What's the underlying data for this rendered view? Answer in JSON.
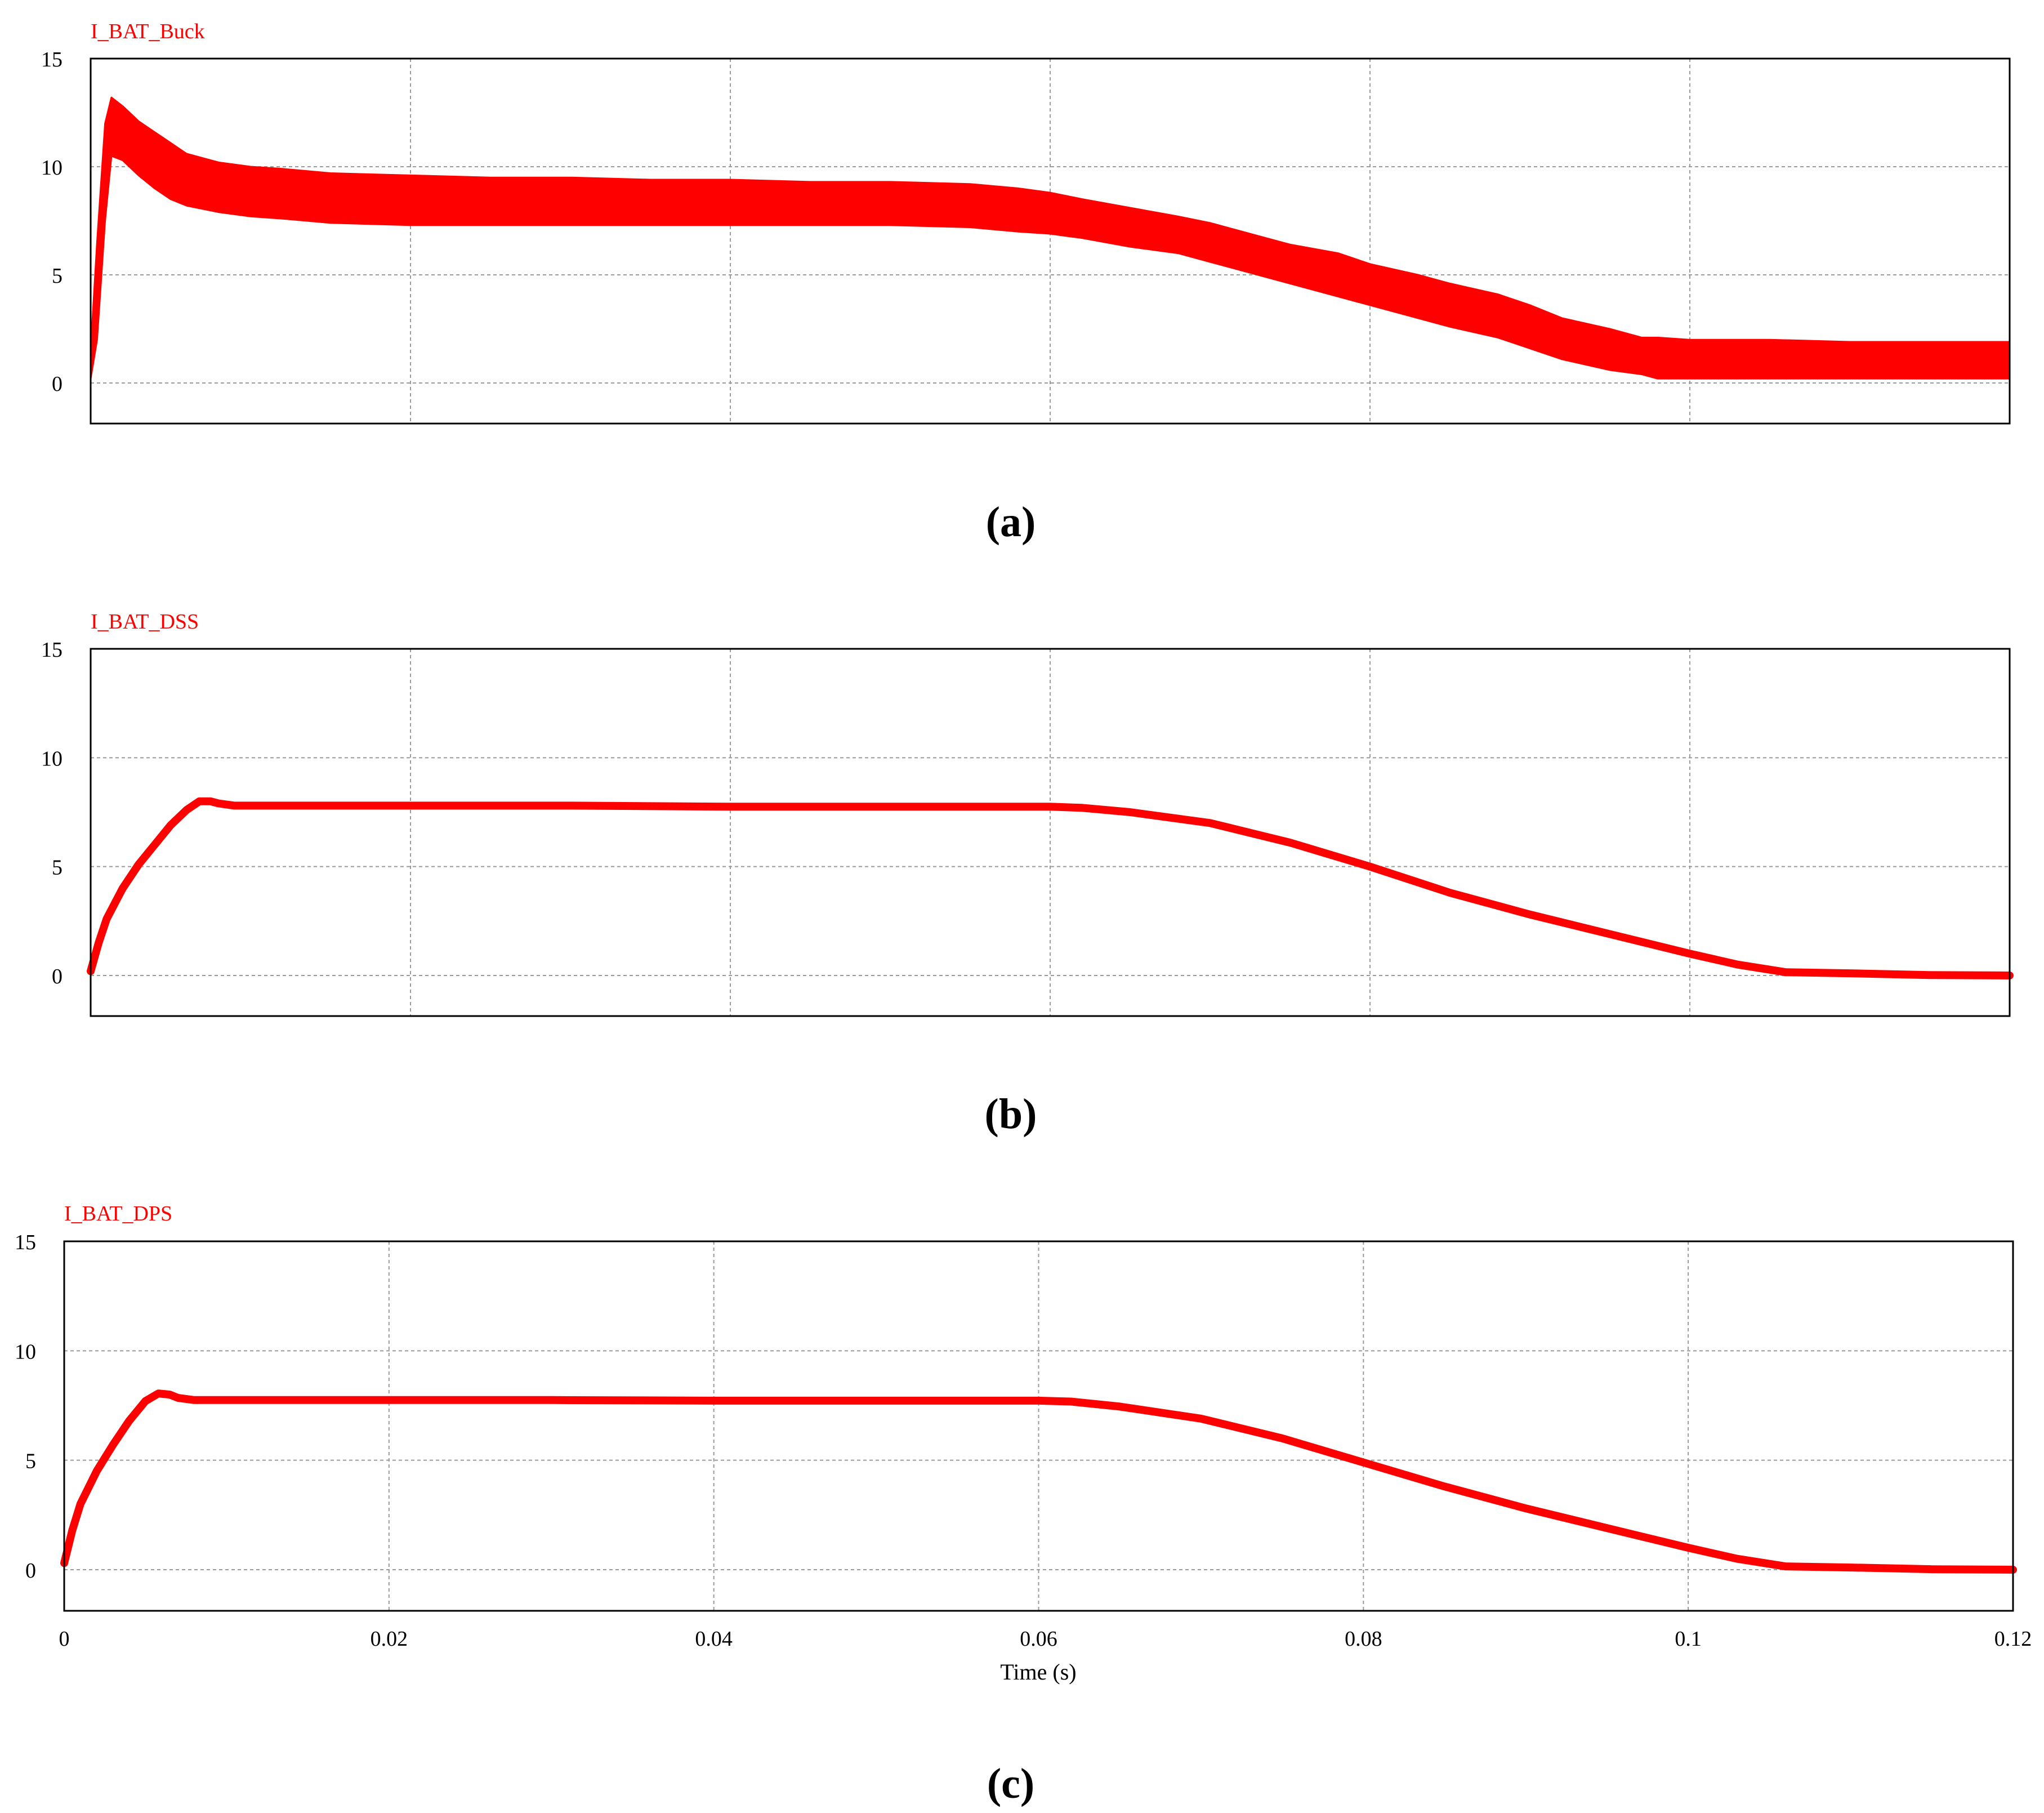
{
  "colors": {
    "trace": "#ff0000",
    "grid": "#9a9a9a",
    "frame": "#000000",
    "text": "#000000"
  },
  "chart_data": [
    {
      "type": "line",
      "panel_label": "(a)",
      "series": [
        {
          "name": "I_BAT_Buck"
        }
      ],
      "xlim": [
        0,
        0.12
      ],
      "ylim": [
        -2,
        15
      ],
      "x_ticks": [
        0,
        0.02,
        0.04,
        0.06,
        0.08,
        0.1,
        0.12
      ],
      "y_ticks": [
        0,
        5,
        10,
        15
      ],
      "x_tick_labels": [],
      "y_tick_labels": [
        "0",
        "5",
        "10",
        "15"
      ],
      "xlabel": "",
      "grid": true,
      "band_x": [
        0,
        0.0004,
        0.0009,
        0.0013,
        0.002,
        0.003,
        0.004,
        0.005,
        0.006,
        0.008,
        0.01,
        0.012,
        0.015,
        0.02,
        0.025,
        0.03,
        0.035,
        0.04,
        0.045,
        0.05,
        0.055,
        0.058,
        0.06,
        0.062,
        0.065,
        0.068,
        0.07,
        0.073,
        0.075,
        0.078,
        0.08,
        0.083,
        0.085,
        0.088,
        0.09,
        0.092,
        0.095,
        0.097,
        0.098,
        0.1,
        0.105,
        0.11,
        0.115,
        0.12
      ],
      "band_upper": [
        1.5,
        6.5,
        12.0,
        13.2,
        12.8,
        12.1,
        11.6,
        11.1,
        10.6,
        10.2,
        10.0,
        9.9,
        9.7,
        9.6,
        9.5,
        9.5,
        9.4,
        9.4,
        9.3,
        9.3,
        9.2,
        9.0,
        8.8,
        8.5,
        8.1,
        7.7,
        7.4,
        6.8,
        6.4,
        6.0,
        5.5,
        5.0,
        4.6,
        4.1,
        3.6,
        3.0,
        2.5,
        2.1,
        2.1,
        2.0,
        2.0,
        1.9,
        1.9,
        1.9
      ],
      "band_lower": [
        0.2,
        2.0,
        7.5,
        10.5,
        10.3,
        9.6,
        9.0,
        8.5,
        8.2,
        7.9,
        7.7,
        7.6,
        7.4,
        7.3,
        7.3,
        7.3,
        7.3,
        7.3,
        7.3,
        7.3,
        7.2,
        7.0,
        6.9,
        6.7,
        6.3,
        6.0,
        5.6,
        5.0,
        4.6,
        4.0,
        3.6,
        3.0,
        2.6,
        2.1,
        1.6,
        1.1,
        0.6,
        0.4,
        0.2,
        0.2,
        0.2,
        0.2,
        0.2,
        0.2
      ]
    },
    {
      "type": "line",
      "panel_label": "(b)",
      "series": [
        {
          "name": "I_BAT_DSS"
        }
      ],
      "xlim": [
        0,
        0.12
      ],
      "ylim": [
        -2,
        15
      ],
      "x_ticks": [
        0,
        0.02,
        0.04,
        0.06,
        0.08,
        0.1,
        0.12
      ],
      "y_ticks": [
        0,
        5,
        10,
        15
      ],
      "x_tick_labels": [],
      "y_tick_labels": [
        "0",
        "5",
        "10",
        "15"
      ],
      "xlabel": "",
      "grid": true,
      "x": [
        0,
        0.0005,
        0.001,
        0.002,
        0.003,
        0.004,
        0.005,
        0.006,
        0.0068,
        0.0075,
        0.008,
        0.009,
        0.01,
        0.012,
        0.015,
        0.02,
        0.03,
        0.04,
        0.05,
        0.055,
        0.06,
        0.062,
        0.065,
        0.07,
        0.075,
        0.08,
        0.085,
        0.09,
        0.095,
        0.1,
        0.103,
        0.106,
        0.11,
        0.115,
        0.12
      ],
      "y": [
        0.2,
        1.5,
        2.6,
        4.0,
        5.1,
        6.0,
        6.9,
        7.6,
        8.0,
        8.0,
        7.9,
        7.8,
        7.8,
        7.8,
        7.8,
        7.8,
        7.8,
        7.75,
        7.75,
        7.75,
        7.75,
        7.7,
        7.5,
        7.0,
        6.1,
        5.0,
        3.8,
        2.8,
        1.9,
        1.0,
        0.5,
        0.15,
        0.1,
        0.02,
        0.0
      ]
    },
    {
      "type": "line",
      "panel_label": "(c)",
      "series": [
        {
          "name": "I_BAT_DPS"
        }
      ],
      "xlim": [
        0,
        0.12
      ],
      "ylim": [
        -2,
        15
      ],
      "x_ticks": [
        0,
        0.02,
        0.04,
        0.06,
        0.08,
        0.1,
        0.12
      ],
      "y_ticks": [
        0,
        5,
        10,
        15
      ],
      "x_tick_labels": [
        "0",
        "0.02",
        "0.04",
        "0.06",
        "0.08",
        "0.1",
        "0.12"
      ],
      "y_tick_labels": [
        "0",
        "5",
        "10",
        "15"
      ],
      "xlabel": "Time (s)",
      "grid": true,
      "x": [
        0,
        0.0005,
        0.001,
        0.002,
        0.003,
        0.004,
        0.005,
        0.0058,
        0.0065,
        0.007,
        0.008,
        0.009,
        0.01,
        0.012,
        0.015,
        0.02,
        0.03,
        0.04,
        0.05,
        0.055,
        0.06,
        0.062,
        0.065,
        0.07,
        0.075,
        0.08,
        0.085,
        0.09,
        0.095,
        0.1,
        0.103,
        0.106,
        0.11,
        0.115,
        0.12
      ],
      "y": [
        0.3,
        1.8,
        3.0,
        4.5,
        5.7,
        6.8,
        7.7,
        8.05,
        8.0,
        7.85,
        7.75,
        7.75,
        7.75,
        7.75,
        7.75,
        7.75,
        7.75,
        7.72,
        7.72,
        7.72,
        7.72,
        7.68,
        7.45,
        6.9,
        6.0,
        4.9,
        3.8,
        2.8,
        1.9,
        1.0,
        0.5,
        0.15,
        0.1,
        0.02,
        0.0
      ]
    }
  ]
}
